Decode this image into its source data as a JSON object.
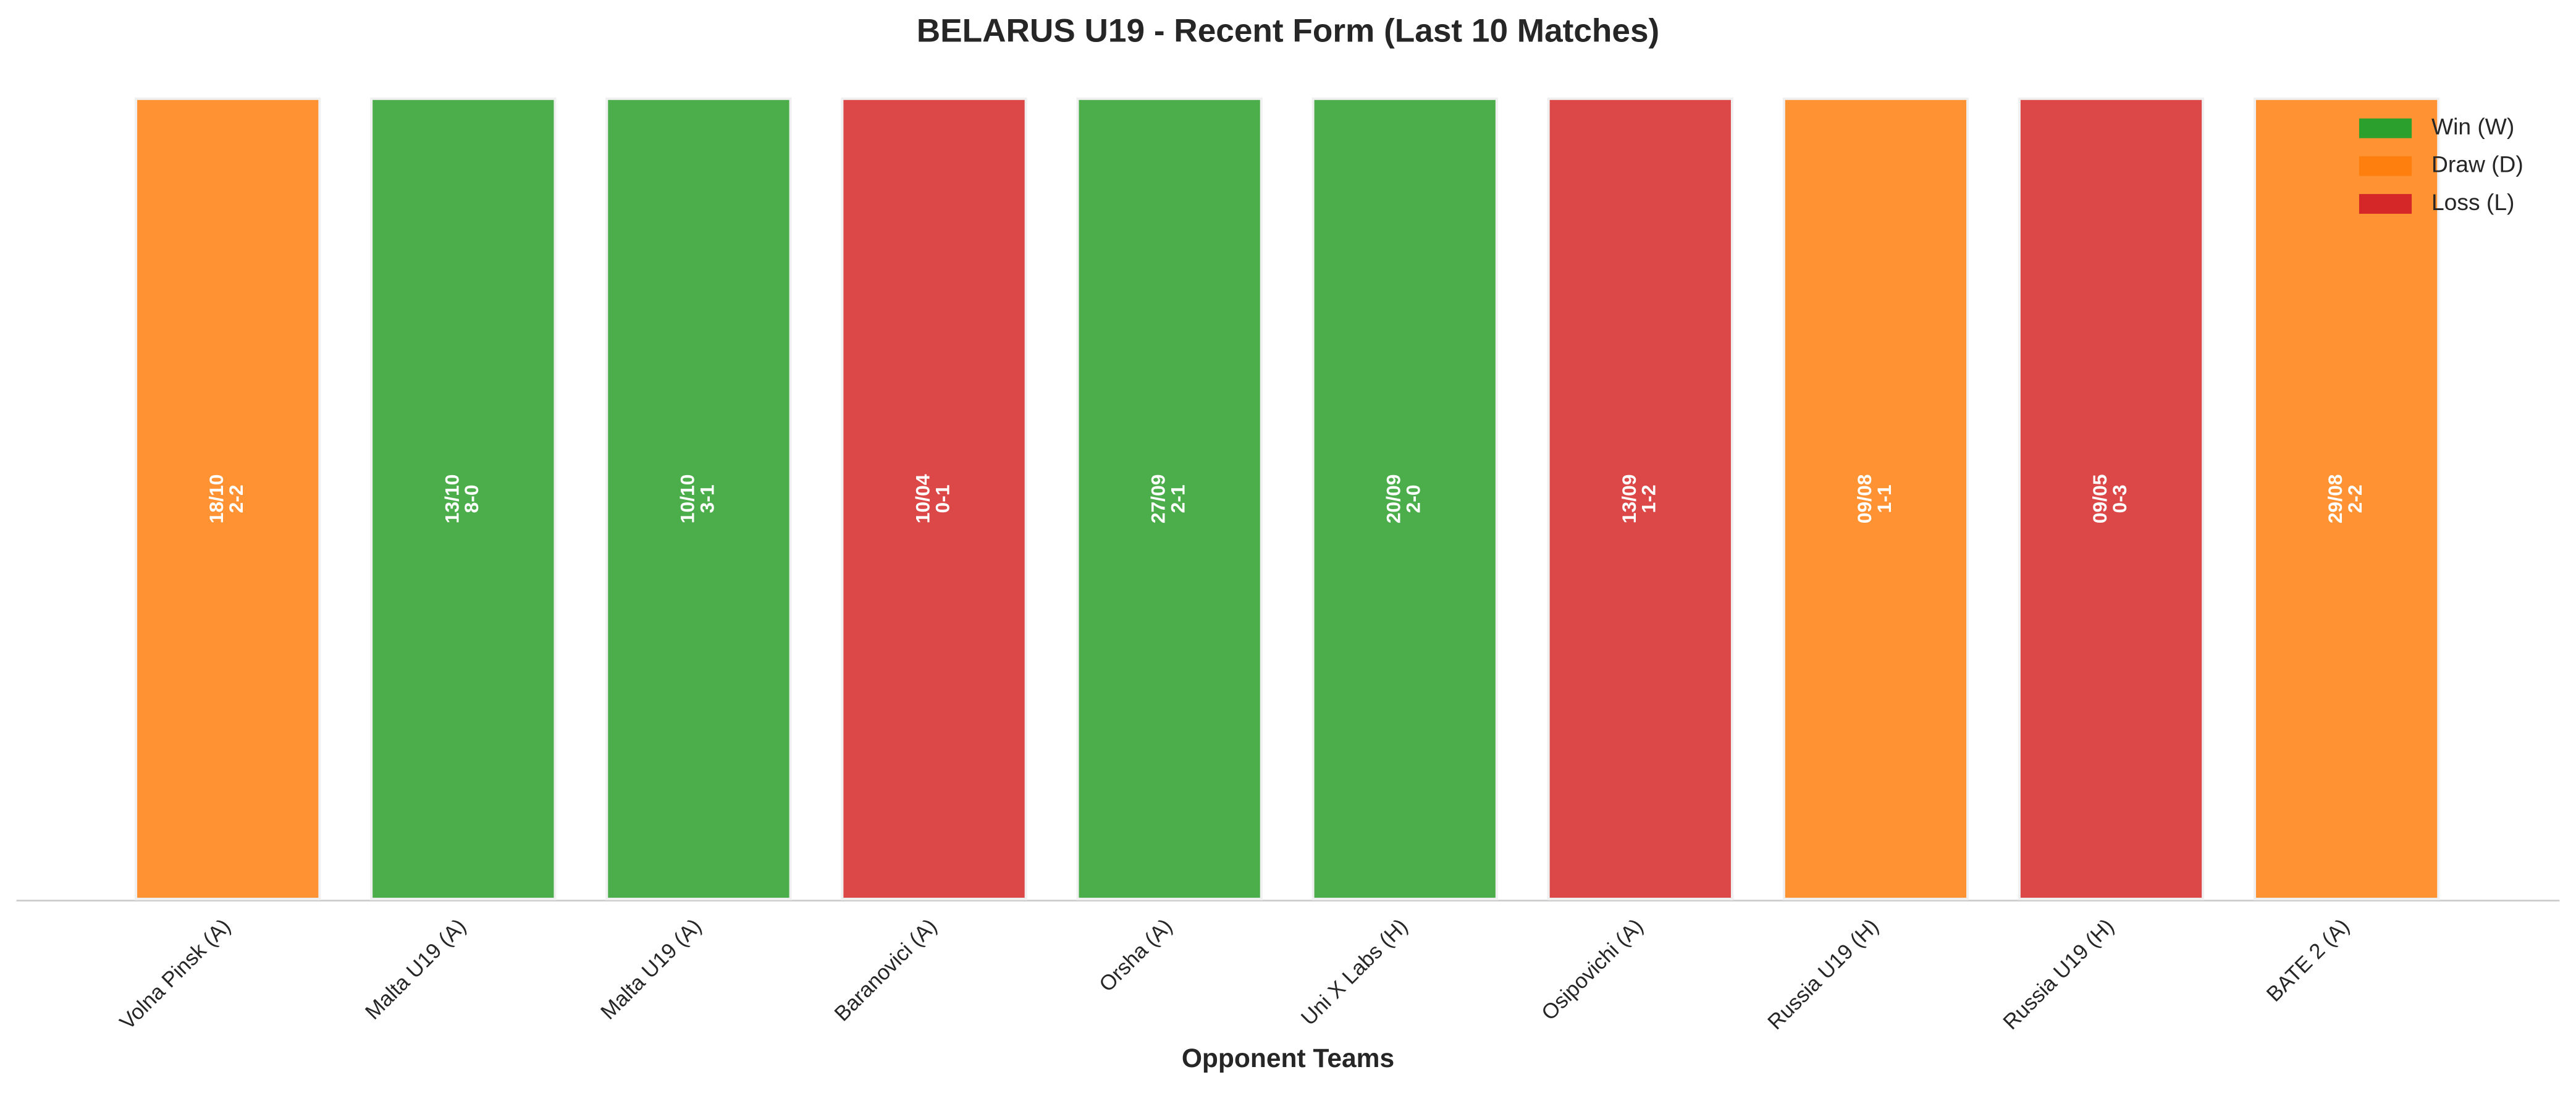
{
  "chart_data": {
    "type": "bar",
    "title": "BELARUS U19 - Recent Form (Last 10 Matches)",
    "x_label": "Opponent Teams",
    "categories": [
      "Volna Pinsk (A)",
      "Malta U19 (A)",
      "Malta U19 (A)",
      "Baranovici (A)",
      "Orsha (A)",
      "Uni X Labs (H)",
      "Osipovichi (A)",
      "Russia U19 (H)",
      "Russia U19 (H)",
      "BATE 2 (A)"
    ],
    "values": [
      1,
      1,
      1,
      1,
      1,
      1,
      1,
      1,
      1,
      1
    ],
    "dates": [
      "18/10",
      "13/10",
      "10/10",
      "10/04",
      "27/09",
      "20/09",
      "13/09",
      "09/08",
      "09/05",
      "29/08"
    ],
    "scores": [
      "2-2",
      "8-0",
      "3-1",
      "0-1",
      "2-1",
      "2-0",
      "1-2",
      "1-1",
      "0-3",
      "2-2"
    ],
    "colors": [
      "#ff7f0e",
      "#2ca02c",
      "#2ca02c",
      "#d62728",
      "#2ca02c",
      "#2ca02c",
      "#d62728",
      "#ff7f0e",
      "#d62728",
      "#ff7f0e"
    ],
    "ylim": [
      0,
      1
    ],
    "legend_position": "upper right",
    "legend": [
      {
        "name": "Win (W)",
        "color": "#2ca02c"
      },
      {
        "name": "Draw (D)",
        "color": "#ff7f0e"
      },
      {
        "name": "Loss (L)",
        "color": "#d62728"
      }
    ]
  }
}
